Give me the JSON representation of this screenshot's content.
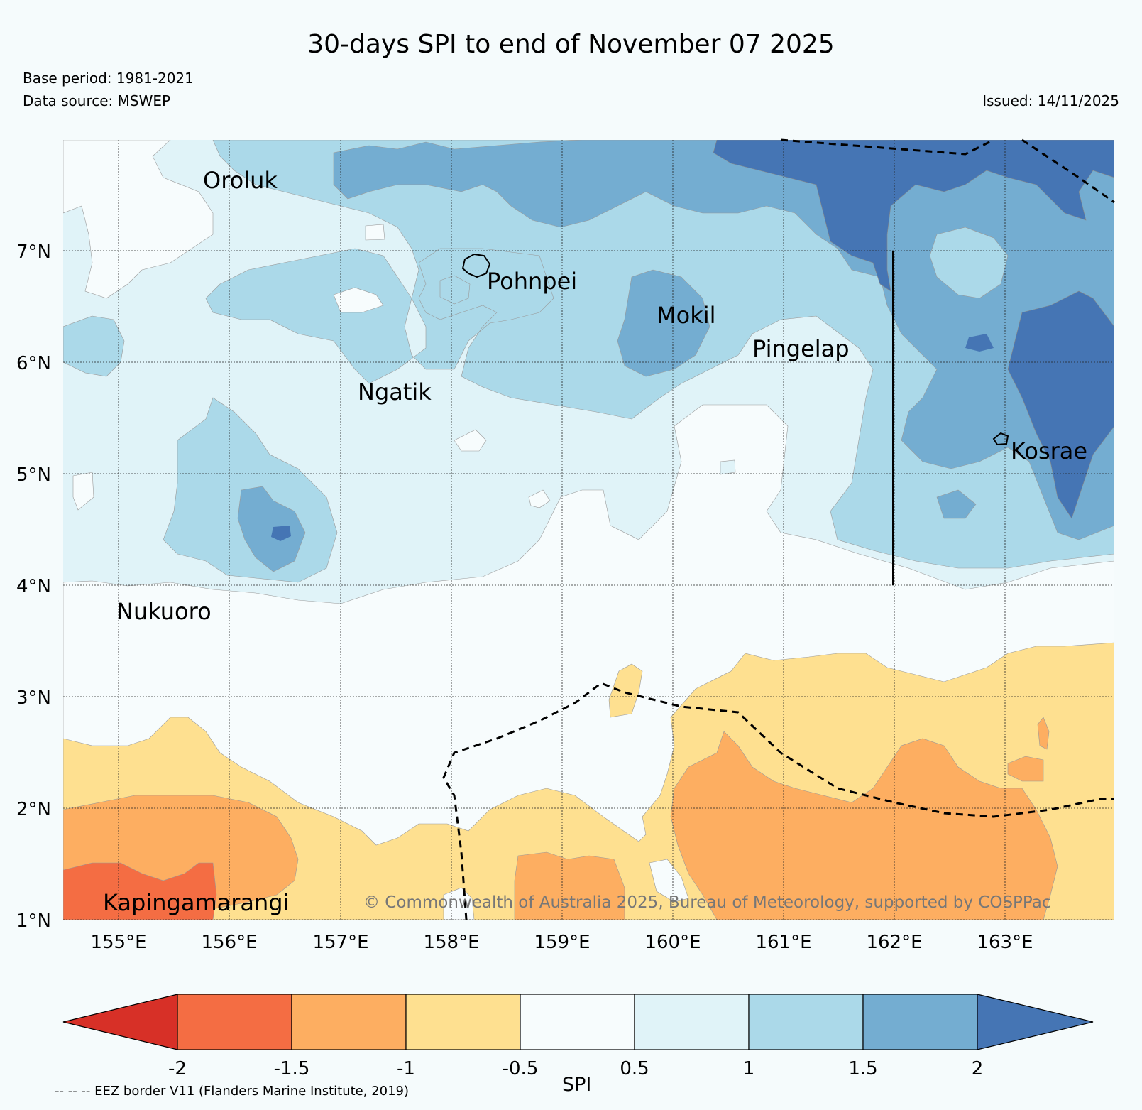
{
  "title": "30-days SPI to end of November 07 2025",
  "base_period": "Base period: 1981-2021",
  "data_source": "Data source: MSWEP",
  "issued": "Issued: 14/11/2025",
  "lat_labels": [
    "7°N",
    "6°N",
    "5°N",
    "4°N",
    "3°N",
    "2°N",
    "1°N"
  ],
  "lon_labels": [
    "155°E",
    "156°E",
    "157°E",
    "158°E",
    "159°E",
    "160°E",
    "161°E",
    "162°E",
    "163°E"
  ],
  "places": [
    {
      "name": "Oroluk"
    },
    {
      "name": "Pohnpei"
    },
    {
      "name": "Mokil"
    },
    {
      "name": "Pingelap"
    },
    {
      "name": "Ngatik"
    },
    {
      "name": "Kosrae"
    },
    {
      "name": "Nukuoro"
    },
    {
      "name": "Kapingamarangi"
    }
  ],
  "copyright": "© Commonwealth of Australia 2025, Bureau of Meteorology, supported by COSPPac",
  "colorbar": {
    "label": "SPI",
    "ticks": [
      "-2",
      "-1.5",
      "-1",
      "-0.5",
      "0.5",
      "1",
      "1.5",
      "2"
    ],
    "colors": {
      "lt_-2": "#d73027",
      "-2_-1.5": "#f46d43",
      "-1.5_-1": "#fdae61",
      "-1_-0.5": "#fee090",
      "-0.5_0.5": "#f7fcfd",
      "0.5_1": "#e0f3f8",
      "1_1.5": "#abd9e9",
      "1.5_2": "#74add1",
      "gt_2": "#4575b4"
    }
  },
  "eez_note": "-- -- -- EEZ border V11 (Flanders Marine Institute, 2019)"
}
